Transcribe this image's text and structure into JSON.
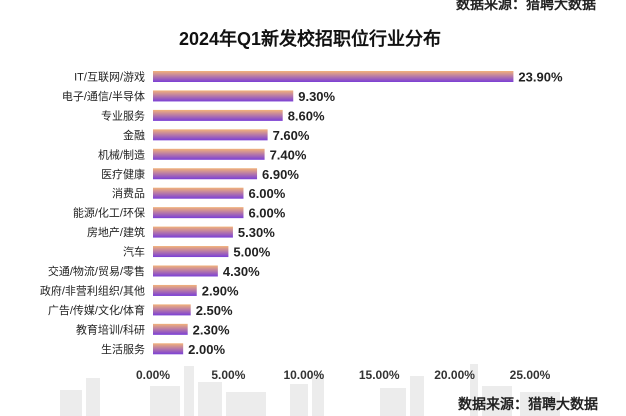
{
  "header": {
    "title": "2024年Q1新发校招职位行业分布",
    "source_top": "数据来源：猎聘大数据",
    "source_bottom": "数据来源：猎聘大数据"
  },
  "chart_data": {
    "type": "bar",
    "orientation": "horizontal",
    "title": "2024年Q1新发校招职位行业分布",
    "categories": [
      "IT/互联网/游戏",
      "电子/通信/半导体",
      "专业服务",
      "金融",
      "机械/制造",
      "医疗健康",
      "消费品",
      "能源/化工/环保",
      "房地产/建筑",
      "汽车",
      "交通/物流/贸易/零售",
      "政府/非营利组织/其他",
      "广告/传媒/文化/体育",
      "教育培训/科研",
      "生活服务"
    ],
    "values": [
      23.9,
      9.3,
      8.6,
      7.6,
      7.4,
      6.9,
      6.0,
      6.0,
      5.3,
      5.0,
      4.3,
      2.9,
      2.5,
      2.3,
      2.0
    ],
    "value_labels": [
      "23.90%",
      "9.30%",
      "8.60%",
      "7.60%",
      "7.40%",
      "6.90%",
      "6.00%",
      "6.00%",
      "5.30%",
      "5.00%",
      "4.30%",
      "2.90%",
      "2.50%",
      "2.30%",
      "2.00%"
    ],
    "xlim": [
      0,
      25
    ],
    "xticks": [
      0,
      5,
      10,
      15,
      20,
      25
    ],
    "xtick_labels": [
      "0.00%",
      "5.00%",
      "10.00%",
      "15.00%",
      "20.00%",
      "25.00%"
    ],
    "grid": false,
    "legend": "none",
    "colors": {
      "gradient_start": "#f2b27a",
      "gradient_end": "#7a3fd6"
    }
  }
}
